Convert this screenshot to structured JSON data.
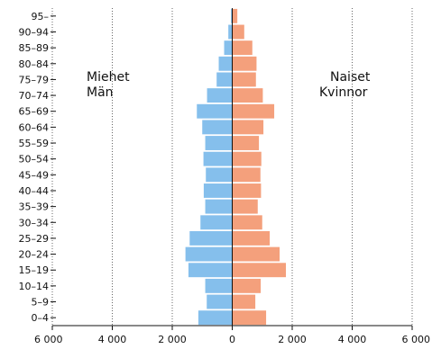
{
  "chart_data": {
    "type": "bar",
    "orientation": "horizontal",
    "layout": "population-pyramid",
    "categories": [
      "0–4",
      "5–9",
      "10–14",
      "15–19",
      "20–24",
      "25–29",
      "30–34",
      "35–39",
      "40–44",
      "45–49",
      "50–54",
      "55–59",
      "60–64",
      "65–69",
      "70–74",
      "75–79",
      "80–84",
      "85–89",
      "90–94",
      "95–"
    ],
    "series": [
      {
        "name": "Miehet Män",
        "side": "left",
        "color": "#85bfec",
        "values": [
          1130,
          850,
          900,
          1460,
          1560,
          1420,
          1060,
          900,
          950,
          880,
          960,
          900,
          1000,
          1180,
          840,
          520,
          450,
          270,
          130,
          40
        ]
      },
      {
        "name": "Naiset Kvinnor",
        "side": "right",
        "color": "#f4a07c",
        "values": [
          1130,
          770,
          950,
          1790,
          1580,
          1250,
          1000,
          850,
          960,
          940,
          970,
          890,
          1040,
          1400,
          1020,
          790,
          810,
          670,
          400,
          170
        ]
      }
    ],
    "xlim": [
      -6000,
      6000
    ],
    "xticks": [
      -6000,
      -4000,
      -2000,
      0,
      2000,
      4000,
      6000
    ],
    "xtick_labels": [
      "6 000",
      "4 000",
      "2 000",
      "0",
      "2 000",
      "4 000",
      "6 000"
    ],
    "group_labels": {
      "left": [
        "Miehet",
        "Män"
      ],
      "right": [
        "Naiset",
        "Kvinnor"
      ]
    },
    "grid": "vertical-dotted",
    "title": "",
    "xlabel": "",
    "ylabel": ""
  }
}
